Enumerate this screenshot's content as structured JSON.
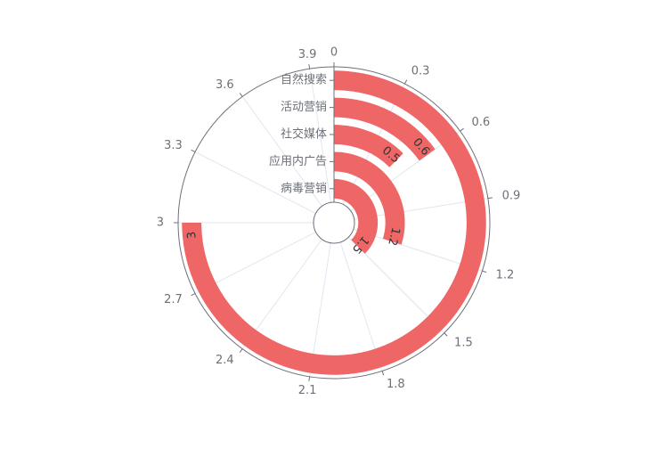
{
  "chart_data": {
    "type": "polar-bar",
    "title": "",
    "categories": [
      "自然搜索",
      "活动营销",
      "社交媒体",
      "应用内广告",
      "病毒营销"
    ],
    "values": [
      3,
      0.6,
      0.5,
      1.2,
      1.5
    ],
    "angle_axis": {
      "min": 0,
      "max": 4,
      "ticks": [
        0,
        0.3,
        0.6,
        0.9,
        1.2,
        1.5,
        1.8,
        2.1,
        2.4,
        2.7,
        3,
        3.3,
        3.6,
        3.9
      ],
      "tick_labels": [
        "0",
        "0.3",
        "0.6",
        "0.9",
        "1.2",
        "1.5",
        "1.8",
        "2.1",
        "2.4",
        "2.7",
        "3",
        "3.3",
        "3.6",
        "3.9"
      ]
    },
    "data_labels": [
      "3",
      "0.6",
      "0.5",
      "1.2",
      "1.5"
    ],
    "bar_color": "#ee6666",
    "axis_color": "#6e7079",
    "split_line_color": "#e0e6f1",
    "legend": "none"
  }
}
